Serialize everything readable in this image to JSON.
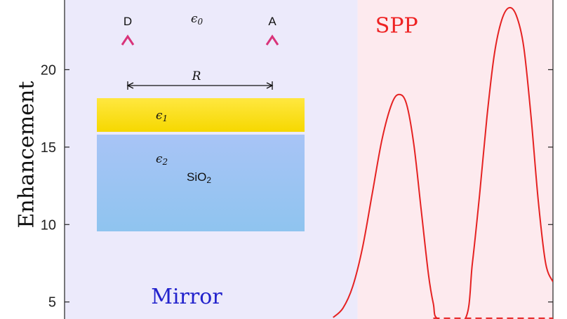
{
  "chart_data": {
    "type": "line",
    "ylabel": "Enhancement",
    "ylim": [
      3.9,
      24.5
    ],
    "y_ticks": [
      5,
      10,
      15,
      20
    ],
    "x_range": [
      0,
      1
    ],
    "regions": [
      {
        "label": "Mirror",
        "x_range": [
          0,
          0.6
        ],
        "color": "#eceafb",
        "label_color": "#2222cc"
      },
      {
        "label": "SPP",
        "x_range": [
          0.6,
          1
        ],
        "color": "#fdeaee",
        "label_color": "#ee2222"
      }
    ],
    "series": [
      {
        "style": "solid",
        "color": "#e52222",
        "x": [
          0.55,
          0.57,
          0.59,
          0.61,
          0.63,
          0.65,
          0.67,
          0.685,
          0.7,
          0.715,
          0.73,
          0.745,
          0.755,
          0.765,
          0.82,
          0.835,
          0.85,
          0.865,
          0.88,
          0.895,
          0.91,
          0.925,
          0.94,
          0.955,
          0.97,
          0.985,
          1.0
        ],
        "y": [
          4.0,
          4.6,
          6.0,
          8.5,
          12.0,
          15.5,
          17.8,
          18.4,
          17.8,
          15.2,
          11.0,
          6.8,
          4.9,
          3.9,
          3.9,
          7.5,
          12.0,
          17.0,
          21.0,
          23.2,
          24.0,
          23.5,
          21.5,
          17.0,
          11.5,
          7.5,
          6.3
        ]
      },
      {
        "style": "dashed",
        "color": "#e52222",
        "x": [
          0.755,
          1.0
        ],
        "y": [
          3.95,
          3.95
        ]
      }
    ],
    "inset": {
      "donor": "D",
      "acceptor": "A",
      "eps0": "ϵ",
      "eps0_sub": "0",
      "separation": "R",
      "eps1": "ϵ",
      "eps1_sub": "1",
      "eps2": "ϵ",
      "eps2_sub": "2",
      "substrate": "SiO",
      "substrate_sub": "2"
    }
  }
}
